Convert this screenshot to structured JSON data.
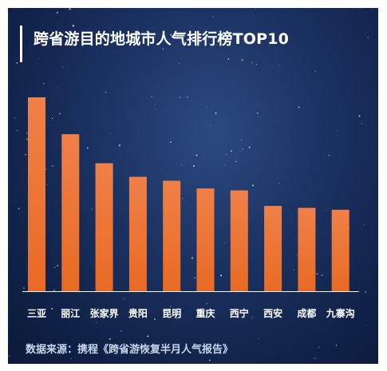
{
  "title": "跨省游目的地城市人气排行榜TOP10",
  "source": "数据来源：携程《跨省游恢复半月人气报告》",
  "colors": {
    "bar_top": "#f08048",
    "bar_bottom": "#e86a24",
    "axis": "#ffffff",
    "background": "#1b3262"
  },
  "chart_data": {
    "type": "bar",
    "title": "跨省游目的地城市人气排行榜TOP10",
    "categories": [
      "三亚",
      "丽江",
      "张家界",
      "贵阳",
      "昆明",
      "重庆",
      "西宁",
      "西安",
      "成都",
      "九寨沟"
    ],
    "values": [
      100,
      81,
      66,
      59,
      57,
      53,
      52,
      44,
      43,
      42
    ],
    "ylim": [
      0,
      100
    ],
    "grid": false,
    "legend": "none"
  }
}
